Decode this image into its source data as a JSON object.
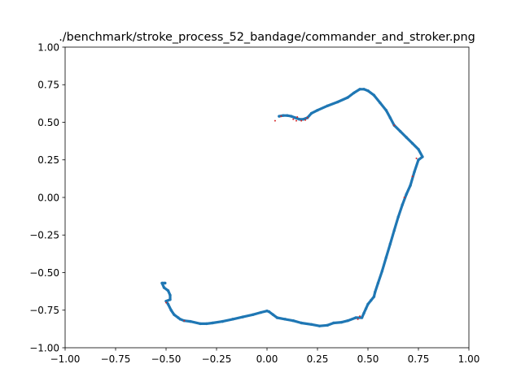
{
  "chart_data": {
    "type": "scatter",
    "title": "./benchmark/stroke_process_52_bandage/commander_and_stroker.png",
    "xlabel": "",
    "ylabel": "",
    "xlim": [
      -1.0,
      1.0
    ],
    "ylim": [
      -1.0,
      1.0
    ],
    "grid": false,
    "x_ticks": [
      -1.0,
      -0.75,
      -0.5,
      -0.25,
      0.0,
      0.25,
      0.5,
      0.75,
      1.0
    ],
    "y_ticks": [
      -1.0,
      -0.75,
      -0.5,
      -0.25,
      0.0,
      0.25,
      0.5,
      0.75,
      1.0
    ],
    "x_tick_labels": [
      "−1.00",
      "−0.75",
      "−0.50",
      "−0.25",
      "0.00",
      "0.25",
      "0.50",
      "0.75",
      "1.00"
    ],
    "y_tick_labels": [
      "−1.00",
      "−0.75",
      "−0.50",
      "−0.25",
      "0.00",
      "0.25",
      "0.50",
      "0.75",
      "1.00"
    ],
    "series": [
      {
        "color": "#1f77b4",
        "points": [
          [
            0.06,
            0.54
          ],
          [
            0.08,
            0.545
          ],
          [
            0.1,
            0.545
          ],
          [
            0.12,
            0.54
          ],
          [
            0.14,
            0.53
          ],
          [
            0.16,
            0.52
          ],
          [
            0.18,
            0.52
          ],
          [
            0.2,
            0.53
          ],
          [
            0.22,
            0.56
          ],
          [
            0.25,
            0.58
          ],
          [
            0.3,
            0.61
          ],
          [
            0.35,
            0.635
          ],
          [
            0.4,
            0.665
          ],
          [
            0.43,
            0.695
          ],
          [
            0.46,
            0.72
          ],
          [
            0.48,
            0.72
          ],
          [
            0.5,
            0.71
          ],
          [
            0.53,
            0.68
          ],
          [
            0.56,
            0.63
          ],
          [
            0.59,
            0.58
          ],
          [
            0.61,
            0.53
          ],
          [
            0.63,
            0.48
          ],
          [
            0.66,
            0.44
          ],
          [
            0.69,
            0.4
          ],
          [
            0.72,
            0.36
          ],
          [
            0.75,
            0.32
          ],
          [
            0.77,
            0.27
          ],
          [
            0.75,
            0.25
          ],
          [
            0.73,
            0.17
          ],
          [
            0.71,
            0.08
          ],
          [
            0.69,
            0.02
          ],
          [
            0.67,
            -0.05
          ],
          [
            0.65,
            -0.13
          ],
          [
            0.63,
            -0.22
          ],
          [
            0.61,
            -0.31
          ],
          [
            0.59,
            -0.4
          ],
          [
            0.57,
            -0.49
          ],
          [
            0.55,
            -0.57
          ],
          [
            0.535,
            -0.63
          ],
          [
            0.53,
            -0.66
          ],
          [
            0.515,
            -0.685
          ],
          [
            0.5,
            -0.71
          ],
          [
            0.49,
            -0.74
          ],
          [
            0.48,
            -0.77
          ],
          [
            0.47,
            -0.8
          ],
          [
            0.44,
            -0.8
          ],
          [
            0.4,
            -0.82
          ],
          [
            0.37,
            -0.83
          ],
          [
            0.33,
            -0.835
          ],
          [
            0.3,
            -0.85
          ],
          [
            0.26,
            -0.855
          ],
          [
            0.22,
            -0.845
          ],
          [
            0.17,
            -0.835
          ],
          [
            0.13,
            -0.82
          ],
          [
            0.09,
            -0.81
          ],
          [
            0.05,
            -0.8
          ],
          [
            0.03,
            -0.78
          ],
          [
            0.01,
            -0.76
          ],
          [
            0.0,
            -0.755
          ],
          [
            -0.03,
            -0.765
          ],
          [
            -0.07,
            -0.78
          ],
          [
            -0.12,
            -0.795
          ],
          [
            -0.17,
            -0.81
          ],
          [
            -0.22,
            -0.825
          ],
          [
            -0.27,
            -0.835
          ],
          [
            -0.3,
            -0.84
          ],
          [
            -0.33,
            -0.84
          ],
          [
            -0.38,
            -0.825
          ],
          [
            -0.41,
            -0.82
          ],
          [
            -0.43,
            -0.81
          ],
          [
            -0.44,
            -0.8
          ],
          [
            -0.46,
            -0.78
          ],
          [
            -0.475,
            -0.75
          ],
          [
            -0.49,
            -0.71
          ],
          [
            -0.5,
            -0.69
          ],
          [
            -0.48,
            -0.68
          ],
          [
            -0.48,
            -0.65
          ],
          [
            -0.49,
            -0.62
          ],
          [
            -0.51,
            -0.6
          ],
          [
            -0.52,
            -0.57
          ],
          [
            -0.505,
            -0.57
          ]
        ]
      },
      {
        "color": "#d62728",
        "points": [
          [
            0.04,
            0.51
          ],
          [
            0.07,
            0.54
          ],
          [
            0.13,
            0.52
          ],
          [
            0.145,
            0.51
          ],
          [
            0.15,
            0.535
          ],
          [
            0.17,
            0.51
          ],
          [
            0.19,
            0.515
          ],
          [
            0.2,
            0.53
          ],
          [
            0.63,
            0.48
          ],
          [
            0.74,
            0.26
          ],
          [
            0.72,
            0.14
          ],
          [
            0.68,
            0.0
          ],
          [
            0.46,
            -0.79
          ],
          [
            0.45,
            -0.81
          ],
          [
            -0.41,
            -0.82
          ],
          [
            -0.5,
            -0.7
          ]
        ]
      }
    ]
  }
}
